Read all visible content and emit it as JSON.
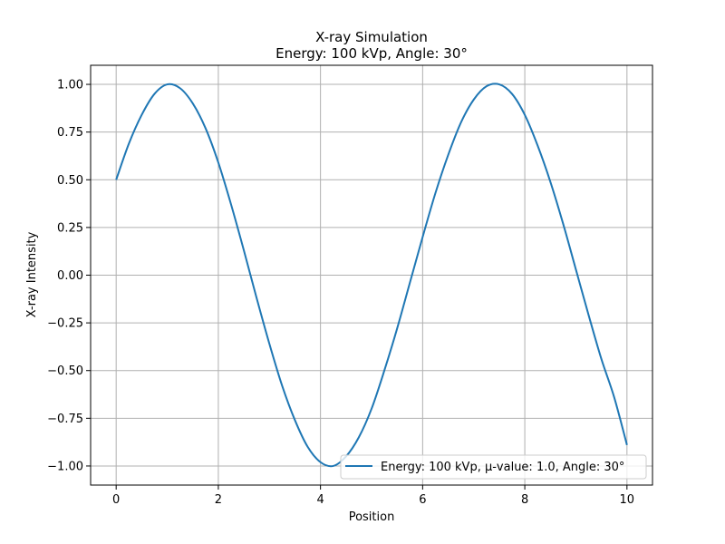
{
  "chart_data": {
    "type": "line",
    "title": "X-ray Simulation",
    "subtitle": "Energy: 100 kVp, Angle: 30°",
    "xlabel": "Position",
    "ylabel": "X-ray Intensity",
    "xlim": [
      -0.5,
      10.5
    ],
    "ylim": [
      -1.1,
      1.1
    ],
    "x_ticks": [
      0,
      2,
      4,
      6,
      8,
      10
    ],
    "x_tick_labels": [
      "0",
      "2",
      "4",
      "6",
      "8",
      "10"
    ],
    "y_ticks": [
      -1.0,
      -0.75,
      -0.5,
      -0.25,
      0.0,
      0.25,
      0.5,
      0.75,
      1.0
    ],
    "y_tick_labels": [
      "−1.00",
      "−0.75",
      "−0.50",
      "−0.25",
      "0.00",
      "0.25",
      "0.50",
      "0.75",
      "1.00"
    ],
    "grid": true,
    "legend_position": "lower-right",
    "series": [
      {
        "name": "Energy: 100 kVp, μ-value: 1.0, Angle: 30°",
        "color": "#1f77b4",
        "x": [
          0,
          0.25,
          0.5,
          0.75,
          1.0,
          1.25,
          1.5,
          1.75,
          2.0,
          2.25,
          2.5,
          2.75,
          3.0,
          3.25,
          3.5,
          3.75,
          4.0,
          4.25,
          4.5,
          4.75,
          5.0,
          5.25,
          5.5,
          5.75,
          6.0,
          6.25,
          6.5,
          6.75,
          7.0,
          7.25,
          7.5,
          7.75,
          8.0,
          8.25,
          8.5,
          8.75,
          9.0,
          9.25,
          9.5,
          9.75,
          10.0
        ],
        "y": [
          0.5,
          0.69,
          0.84,
          0.95,
          1.0,
          0.98,
          0.9,
          0.77,
          0.59,
          0.37,
          0.13,
          -0.12,
          -0.36,
          -0.58,
          -0.76,
          -0.9,
          -0.98,
          -1.0,
          -0.95,
          -0.85,
          -0.7,
          -0.5,
          -0.28,
          -0.04,
          0.2,
          0.43,
          0.63,
          0.8,
          0.92,
          0.99,
          1.0,
          0.95,
          0.84,
          0.68,
          0.49,
          0.27,
          0.03,
          -0.21,
          -0.44,
          -0.64,
          -0.89
        ]
      }
    ]
  }
}
